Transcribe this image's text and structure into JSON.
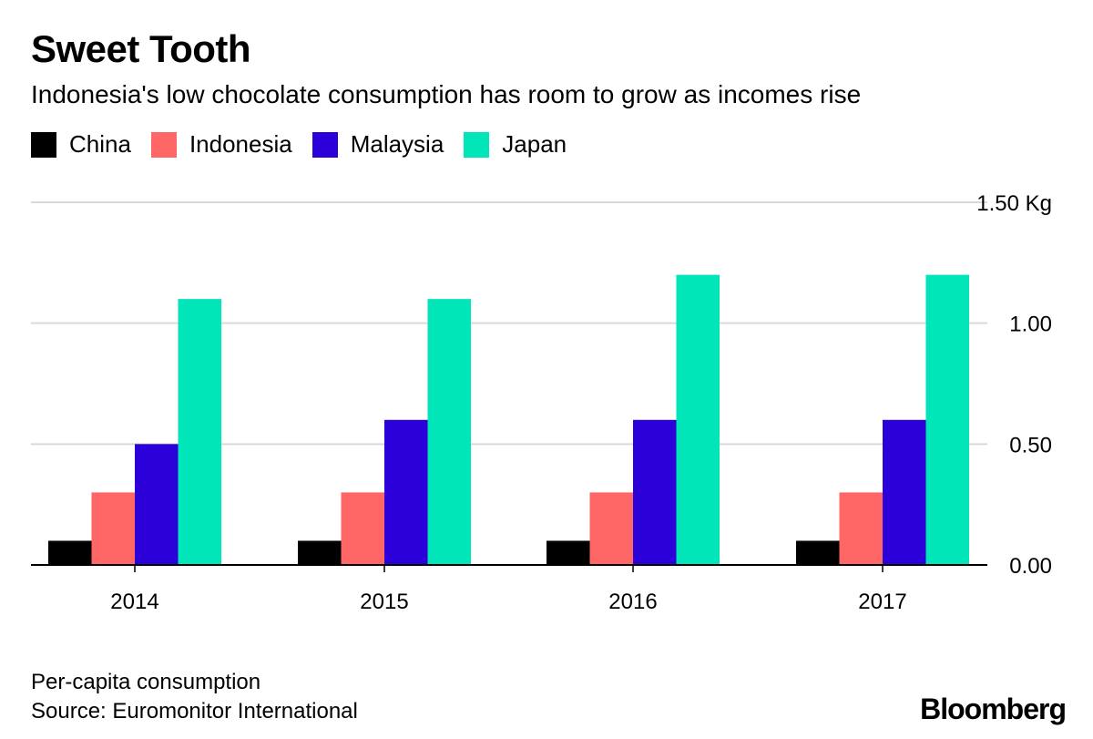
{
  "title": "Sweet Tooth",
  "subtitle": "Indonesia's low chocolate consumption has room to grow as incomes rise",
  "notes": {
    "line1": "Per-capita consumption",
    "line2": "Source: Euromonitor International"
  },
  "brand": "Bloomberg",
  "chart_data": {
    "type": "bar",
    "title": "Sweet Tooth",
    "subtitle": "Indonesia's low chocolate consumption has room to grow as incomes rise",
    "categories": [
      "2014",
      "2015",
      "2016",
      "2017"
    ],
    "series": [
      {
        "name": "China",
        "color": "#000000",
        "values": [
          0.1,
          0.1,
          0.1,
          0.1
        ]
      },
      {
        "name": "Indonesia",
        "color": "#ff6666",
        "values": [
          0.3,
          0.3,
          0.3,
          0.3
        ]
      },
      {
        "name": "Malaysia",
        "color": "#2b00d9",
        "values": [
          0.5,
          0.6,
          0.6,
          0.6
        ]
      },
      {
        "name": "Japan",
        "color": "#00e6b8",
        "values": [
          1.1,
          1.1,
          1.2,
          1.2
        ]
      }
    ],
    "yticks": [
      {
        "value": 0,
        "label": "0.00"
      },
      {
        "value": 0.5,
        "label": "0.50"
      },
      {
        "value": 1.0,
        "label": "1.00"
      },
      {
        "value": 1.5,
        "label": "1.50 Kg"
      }
    ],
    "ylim": [
      0,
      1.5
    ],
    "ylabel": "Kg",
    "xlabel": "",
    "grid": true,
    "axis_position": "right",
    "legend_position": "top-left"
  }
}
